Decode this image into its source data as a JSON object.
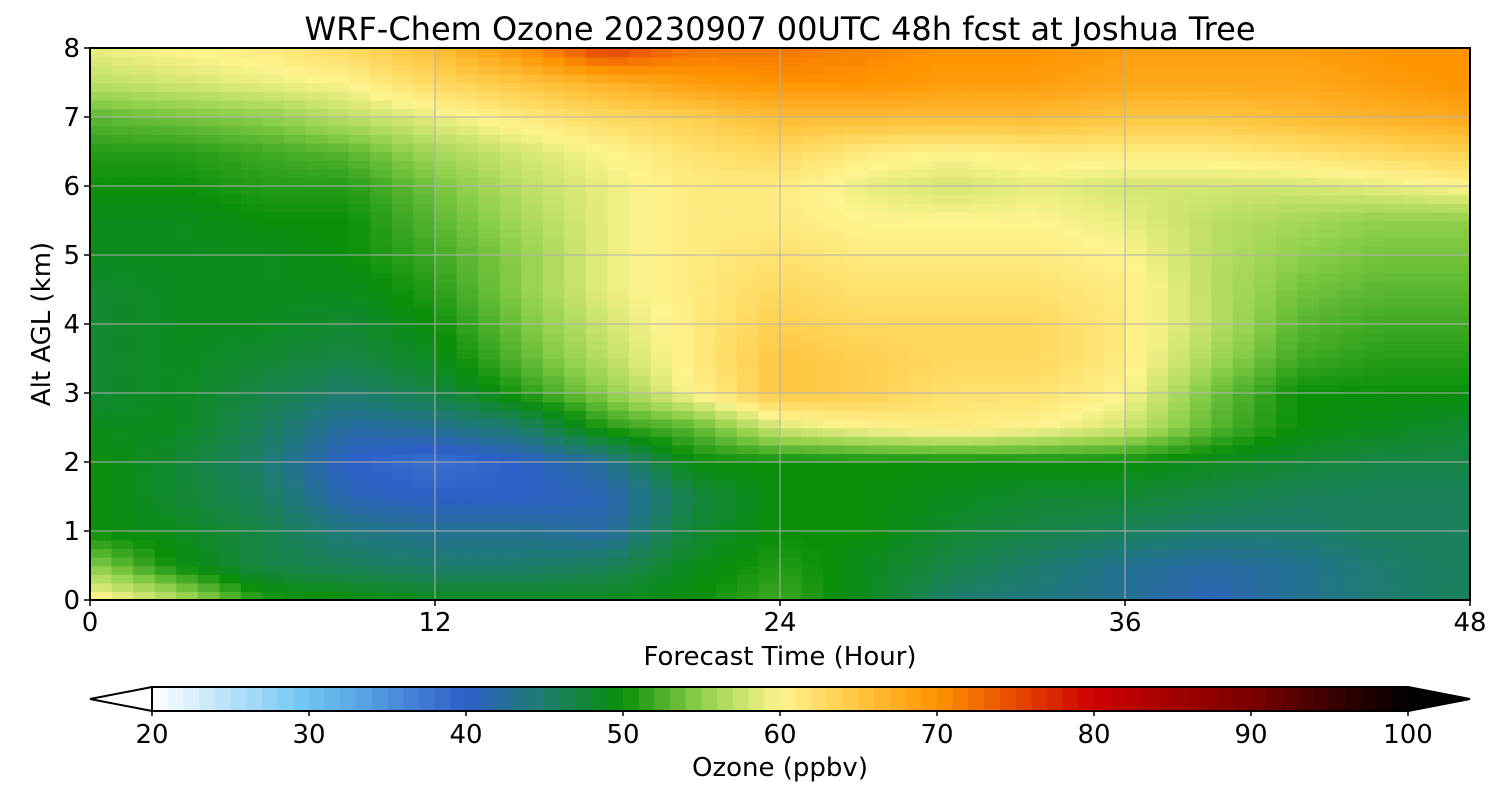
{
  "chart_data": {
    "type": "heatmap",
    "title": "WRF-Chem Ozone  20230907 00UTC 48h fcst at Joshua Tree",
    "xlabel": "Forecast Time (Hour)",
    "ylabel": "Alt AGL (km)",
    "xlim": [
      0,
      48
    ],
    "ylim": [
      0,
      8
    ],
    "x_ticks": [
      0,
      12,
      24,
      36,
      48
    ],
    "y_ticks": [
      0,
      1,
      2,
      3,
      4,
      5,
      6,
      7,
      8
    ],
    "grid": true,
    "colorbar": {
      "label": "Ozone  (ppbv)",
      "range": [
        20,
        100
      ],
      "ticks": [
        20,
        30,
        40,
        50,
        60,
        70,
        80,
        90,
        100
      ],
      "extend": "both",
      "stops": [
        {
          "v": 20,
          "c": "#ffffff"
        },
        {
          "v": 30,
          "c": "#6ec4f2"
        },
        {
          "v": 40,
          "c": "#2e5fc8"
        },
        {
          "v": 45,
          "c": "#1e7d6e"
        },
        {
          "v": 50,
          "c": "#0a8f0a"
        },
        {
          "v": 55,
          "c": "#8fd04a"
        },
        {
          "v": 60,
          "c": "#fff48f"
        },
        {
          "v": 65,
          "c": "#ffc640"
        },
        {
          "v": 70,
          "c": "#ff9300"
        },
        {
          "v": 80,
          "c": "#cc0000"
        },
        {
          "v": 90,
          "c": "#7a0000"
        },
        {
          "v": 100,
          "c": "#000000"
        }
      ]
    },
    "x": [
      0,
      3,
      6,
      9,
      12,
      15,
      18,
      21,
      24,
      27,
      30,
      33,
      36,
      39,
      42,
      45,
      48
    ],
    "y": [
      0,
      0.5,
      1,
      1.5,
      2,
      2.5,
      3,
      3.5,
      4,
      4.5,
      5,
      5.5,
      6,
      6.5,
      7,
      7.5,
      8
    ],
    "z": [
      [
        61,
        57,
        51,
        50,
        49,
        49,
        49,
        50,
        52,
        49,
        45,
        44,
        43,
        41,
        43,
        45,
        46
      ],
      [
        55,
        50,
        47,
        46,
        45,
        45,
        46,
        49,
        51,
        49,
        47,
        45,
        43,
        42,
        43,
        45,
        46
      ],
      [
        50,
        49,
        47,
        44,
        43,
        43,
        42,
        48,
        50,
        50,
        48,
        47,
        46,
        45,
        45,
        46,
        46
      ],
      [
        50,
        48,
        46,
        41,
        40,
        40,
        41,
        47,
        50,
        50,
        49,
        48,
        48,
        47,
        46,
        46,
        46
      ],
      [
        50,
        48,
        45,
        40,
        38,
        40,
        43,
        50,
        50,
        50,
        50,
        50,
        50,
        49,
        48,
        47,
        47
      ],
      [
        49,
        49,
        46,
        42,
        43,
        45,
        51,
        53,
        58,
        60,
        61,
        60,
        58,
        53,
        50,
        49,
        48
      ],
      [
        48,
        49,
        47,
        45,
        47,
        51,
        55,
        60,
        65,
        64,
        62,
        62,
        60,
        54,
        50,
        50,
        50
      ],
      [
        48,
        49,
        48,
        47,
        49,
        53,
        57,
        61,
        65,
        64,
        63,
        63,
        61,
        56,
        52,
        51,
        51
      ],
      [
        48,
        49,
        49,
        48,
        50,
        54,
        58,
        61,
        64,
        63,
        63,
        63,
        61,
        57,
        53,
        52,
        52
      ],
      [
        48,
        49,
        49,
        49,
        51,
        55,
        59,
        61,
        63,
        62,
        62,
        62,
        61,
        57,
        54,
        53,
        53
      ],
      [
        49,
        49,
        49,
        50,
        52,
        55,
        59,
        61,
        62,
        61,
        61,
        61,
        60,
        57,
        55,
        54,
        54
      ],
      [
        49,
        49,
        50,
        50,
        53,
        56,
        59,
        61,
        61,
        60,
        60,
        60,
        59,
        57,
        56,
        55,
        55
      ],
      [
        50,
        50,
        51,
        51,
        54,
        57,
        59,
        61,
        61,
        59,
        58,
        59,
        58,
        58,
        58,
        59,
        60
      ],
      [
        51,
        51,
        52,
        53,
        56,
        58,
        60,
        62,
        63,
        61,
        60,
        61,
        61,
        61,
        62,
        63,
        64
      ],
      [
        53,
        54,
        55,
        57,
        59,
        61,
        63,
        64,
        66,
        66,
        66,
        66,
        65,
        65,
        66,
        67,
        68
      ],
      [
        57,
        58,
        59,
        60,
        63,
        65,
        67,
        69,
        70,
        70,
        69,
        69,
        68,
        68,
        68,
        69,
        70
      ],
      [
        59,
        60,
        61,
        63,
        66,
        70,
        76,
        72,
        72,
        71,
        70,
        70,
        69,
        69,
        69,
        70,
        70
      ]
    ]
  }
}
